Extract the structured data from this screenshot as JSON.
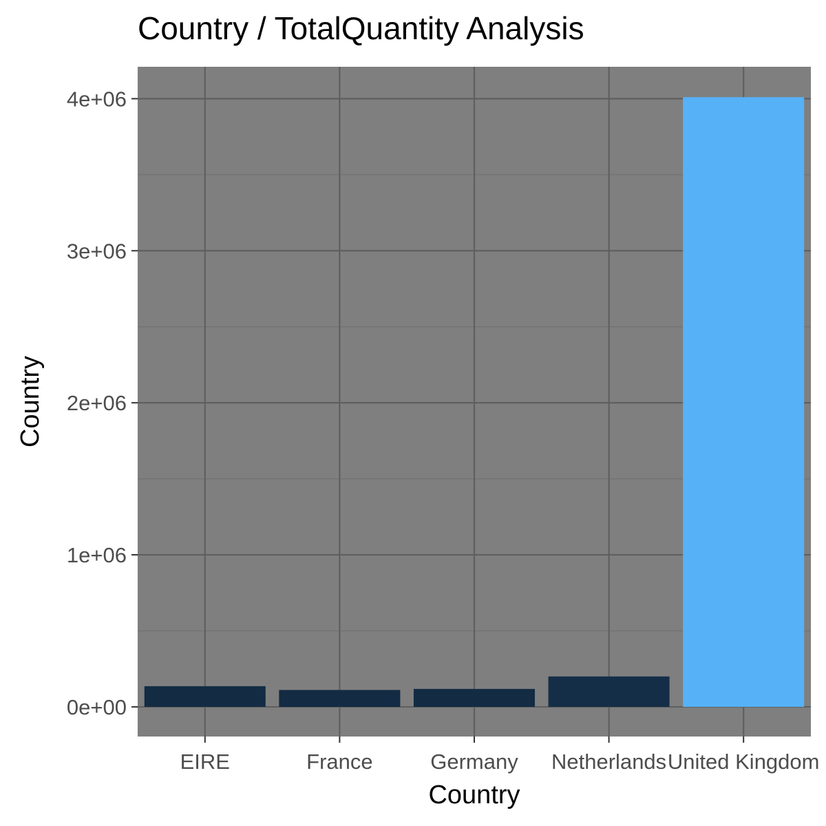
{
  "chart_data": {
    "type": "bar",
    "title": "Country / TotalQuantity Analysis",
    "xlabel": "Country",
    "ylabel": "Country",
    "categories": [
      "EIRE",
      "France",
      "Germany",
      "Netherlands",
      "United Kingdom"
    ],
    "values": [
      136000,
      111000,
      118000,
      200000,
      4010000
    ],
    "ylim": [
      -195000,
      4210000
    ],
    "yticks": [
      0,
      1000000,
      2000000,
      3000000,
      4000000
    ],
    "ytick_labels": [
      "0e+00",
      "1e+06",
      "2e+06",
      "3e+06",
      "4e+06"
    ],
    "grid": true,
    "legend": "none",
    "colors": {
      "panel_background": "#7f7f7f",
      "grid_major": "#5f5f5f",
      "grid_minor": "#717171",
      "bar_low": "#132b43",
      "bar_high": "#56b1f7"
    }
  }
}
